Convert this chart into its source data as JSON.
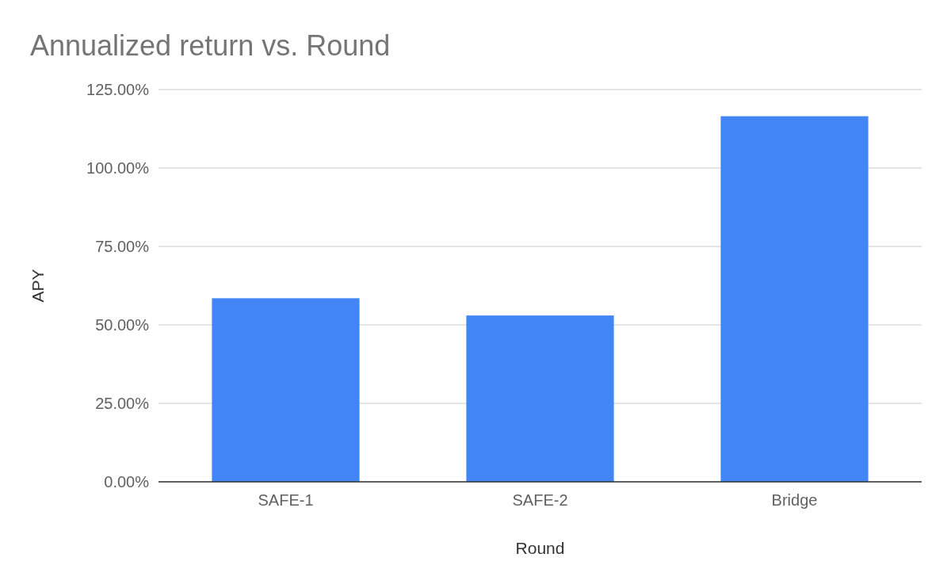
{
  "chart_data": {
    "type": "bar",
    "title": "Annualized return vs. Round",
    "xlabel": "Round",
    "ylabel": "APY",
    "categories": [
      "SAFE-1",
      "SAFE-2",
      "Bridge"
    ],
    "values": [
      58.5,
      53,
      116.5
    ],
    "color": "#4285f4",
    "ylim": [
      0,
      125
    ],
    "yticks": [
      {
        "value": 0,
        "label": "0.00%"
      },
      {
        "value": 25,
        "label": "25.00%"
      },
      {
        "value": 50,
        "label": "50.00%"
      },
      {
        "value": 75,
        "label": "75.00%"
      },
      {
        "value": 100,
        "label": "100.00%"
      },
      {
        "value": 125,
        "label": "125.00%"
      }
    ],
    "grid": true
  }
}
